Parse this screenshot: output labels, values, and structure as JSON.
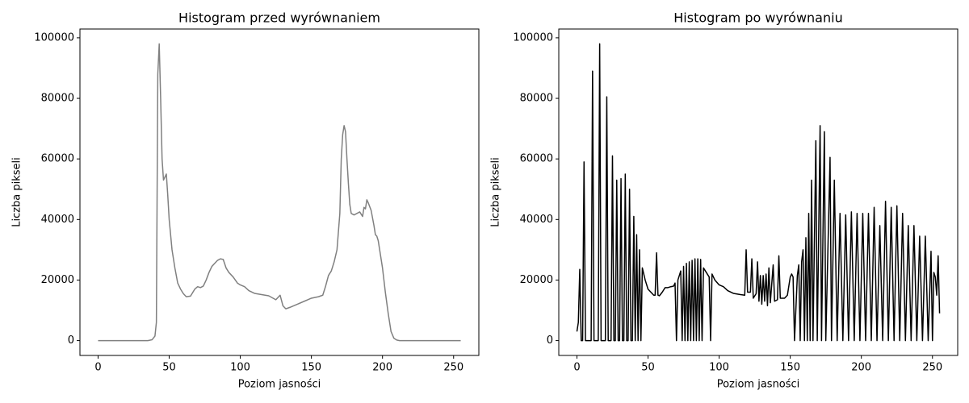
{
  "chart_data": [
    {
      "type": "line",
      "title": "Histogram przed wyrównaniem",
      "xlabel": "Poziom jasności",
      "ylabel": "Liczba pikseli",
      "color": "#808080",
      "xlim": [
        -12.75,
        267.75
      ],
      "ylim": [
        -4900,
        102900
      ],
      "xticks": [
        0,
        50,
        100,
        150,
        200,
        250
      ],
      "yticks": [
        0,
        20000,
        40000,
        60000,
        80000,
        100000
      ],
      "x": [
        0,
        35,
        38,
        40,
        41,
        42,
        43,
        44,
        45,
        46,
        47,
        48,
        49,
        50,
        52,
        54,
        56,
        58,
        60,
        62,
        65,
        68,
        70,
        72,
        74,
        76,
        78,
        80,
        82,
        84,
        86,
        88,
        90,
        92,
        95,
        98,
        100,
        103,
        106,
        110,
        115,
        120,
        125,
        128,
        130,
        132,
        135,
        140,
        145,
        150,
        155,
        158,
        160,
        162,
        164,
        166,
        168,
        170,
        171,
        172,
        173,
        174,
        175,
        176,
        177,
        178,
        180,
        182,
        184,
        186,
        187,
        188,
        189,
        190,
        192,
        194,
        195,
        196,
        197,
        198,
        200,
        202,
        204,
        206,
        208,
        210,
        212,
        255
      ],
      "values": [
        0,
        0,
        300,
        1500,
        6000,
        88000,
        98000,
        80000,
        60000,
        53000,
        54000,
        55000,
        48000,
        40000,
        30000,
        24000,
        19000,
        17000,
        15500,
        14500,
        14700,
        17000,
        17800,
        17500,
        18000,
        20000,
        22500,
        24500,
        25500,
        26500,
        27000,
        26800,
        24000,
        22500,
        21000,
        19000,
        18400,
        17800,
        16500,
        15600,
        15200,
        14800,
        13500,
        15000,
        11500,
        10500,
        11000,
        12000,
        13000,
        14000,
        14500,
        15000,
        18000,
        21500,
        23000,
        26000,
        30000,
        42000,
        60000,
        68000,
        71000,
        69000,
        60000,
        52000,
        45000,
        42000,
        41500,
        42000,
        42500,
        41000,
        44000,
        43500,
        46500,
        45500,
        43000,
        38000,
        35000,
        34500,
        33000,
        30000,
        24000,
        16000,
        9000,
        3000,
        800,
        200,
        0,
        0
      ]
    },
    {
      "type": "line",
      "title": "Histogram po wyrównaniu",
      "xlabel": "Poziom jasności",
      "ylabel": "Liczba pikseli",
      "color": "#000000",
      "xlim": [
        -12.75,
        267.75
      ],
      "ylim": [
        -4900,
        102900
      ],
      "xticks": [
        0,
        50,
        100,
        150,
        200,
        250
      ],
      "yticks": [
        0,
        20000,
        40000,
        60000,
        80000,
        100000
      ],
      "x": [
        0,
        1,
        2,
        3,
        4,
        5,
        6,
        10,
        11,
        12,
        15,
        16,
        17,
        20,
        21,
        22,
        24,
        25,
        26,
        27,
        28,
        29,
        30,
        31,
        32,
        33,
        34,
        35,
        36,
        37,
        38,
        39,
        40,
        41,
        42,
        43,
        44,
        45,
        46,
        48,
        50,
        52,
        54,
        55,
        56,
        57,
        58,
        60,
        62,
        64,
        66,
        68,
        69,
        70,
        71,
        73,
        74,
        75,
        76,
        77,
        78,
        79,
        80,
        81,
        82,
        83,
        84,
        85,
        86,
        87,
        88,
        89,
        91,
        93,
        94,
        95,
        97,
        100,
        103,
        106,
        110,
        115,
        118,
        119,
        120,
        122,
        123,
        124,
        126,
        127,
        128,
        129,
        130,
        131,
        132,
        133,
        134,
        135,
        136,
        138,
        139,
        141,
        142,
        143,
        146,
        148,
        150,
        151,
        152,
        153,
        155,
        156,
        157,
        158,
        159,
        160,
        161,
        162,
        163,
        164,
        165,
        166,
        168,
        169,
        171,
        172,
        174,
        175,
        178,
        179,
        181,
        183,
        185,
        187,
        189,
        191,
        193,
        195,
        197,
        199,
        201,
        203,
        205,
        207,
        209,
        211,
        213,
        215,
        217,
        219,
        221,
        223,
        225,
        227,
        229,
        231,
        233,
        235,
        237,
        239,
        241,
        243,
        245,
        247,
        249,
        250,
        251,
        252,
        253,
        254,
        255
      ],
      "values": [
        3000,
        6000,
        23500,
        0,
        0,
        59000,
        0,
        0,
        89000,
        0,
        0,
        98000,
        0,
        0,
        80500,
        0,
        0,
        61000,
        0,
        0,
        53000,
        0,
        0,
        53500,
        0,
        0,
        55000,
        0,
        0,
        50000,
        0,
        0,
        41000,
        0,
        35000,
        0,
        30000,
        0,
        24000,
        20000,
        17000,
        16000,
        15000,
        15000,
        29000,
        15000,
        14800,
        16000,
        17500,
        17500,
        17800,
        18000,
        19000,
        0,
        20000,
        23000,
        0,
        24500,
        0,
        25500,
        0,
        26000,
        0,
        26500,
        0,
        27000,
        0,
        27000,
        0,
        26800,
        0,
        24000,
        22500,
        21000,
        0,
        22000,
        20000,
        18400,
        17800,
        16500,
        15600,
        15200,
        15000,
        30000,
        16000,
        16000,
        27000,
        14000,
        15500,
        26000,
        13000,
        21500,
        12000,
        21500,
        13000,
        22000,
        11500,
        24000,
        12500,
        25000,
        13000,
        13500,
        28000,
        14000,
        14000,
        15000,
        21000,
        22000,
        21000,
        0,
        21500,
        25000,
        0,
        26000,
        30000,
        0,
        34000,
        0,
        42000,
        0,
        53000,
        0,
        66000,
        0,
        71000,
        0,
        69000,
        0,
        60500,
        0,
        53000,
        0,
        42000,
        0,
        41500,
        0,
        42500,
        0,
        42000,
        0,
        42000,
        0,
        42000,
        0,
        44000,
        0,
        38000,
        0,
        46000,
        0,
        44000,
        0,
        44500,
        0,
        42000,
        0,
        38000,
        0,
        38000,
        0,
        34500,
        0,
        34500,
        0,
        29500,
        0,
        22500,
        21000,
        15000,
        28000,
        9000
      ]
    }
  ]
}
